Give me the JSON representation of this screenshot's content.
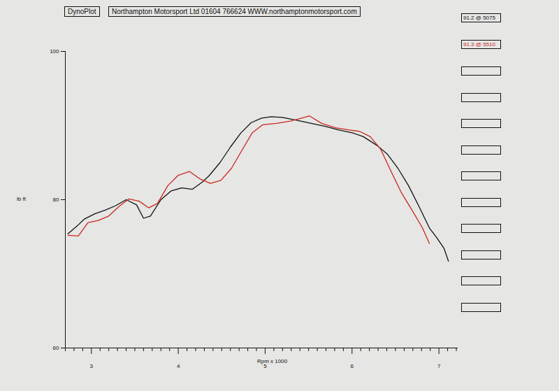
{
  "chart_data": {
    "type": "line",
    "title": "DynoPlot",
    "subtitle": "Northampton Motorsport Ltd 01604 766624 WWW.northamptonmotorsport.com",
    "x_label": "Rpm x 1000",
    "y_label": "lb ft",
    "xlim": [
      2.7,
      7.22
    ],
    "xticks": [
      3,
      4,
      5,
      6,
      7
    ],
    "ylim": [
      60,
      100
    ],
    "yticks": [
      60,
      80,
      100
    ],
    "grid": false,
    "series": [
      {
        "name": "91.2 @ 5075",
        "color": "#111111",
        "x": [
          2.73,
          2.84,
          2.92,
          3.04,
          3.16,
          3.28,
          3.4,
          3.52,
          3.6,
          3.68,
          3.8,
          3.92,
          4.04,
          4.16,
          4.28,
          4.36,
          4.48,
          4.6,
          4.72,
          4.84,
          4.96,
          5.07,
          5.2,
          5.37,
          5.53,
          5.69,
          5.85,
          6.01,
          6.13,
          6.29,
          6.41,
          6.53,
          6.65,
          6.77,
          6.89,
          6.98,
          7.06,
          7.11
        ],
        "values": [
          75.4,
          76.5,
          77.4,
          78.1,
          78.6,
          79.2,
          80.0,
          79.3,
          77.5,
          77.8,
          80.0,
          81.2,
          81.6,
          81.4,
          82.4,
          83.3,
          85.0,
          87.1,
          89.0,
          90.4,
          91.0,
          91.2,
          91.1,
          90.7,
          90.3,
          89.9,
          89.4,
          89.0,
          88.5,
          87.3,
          86.1,
          84.2,
          81.9,
          79.1,
          76.2,
          74.8,
          73.4,
          71.7
        ]
      },
      {
        "name": "91.3 @ 5510",
        "color": "#c8281e",
        "x": [
          2.73,
          2.85,
          2.96,
          3.08,
          3.2,
          3.32,
          3.43,
          3.55,
          3.66,
          3.76,
          3.88,
          4.0,
          4.13,
          4.25,
          4.37,
          4.49,
          4.61,
          4.73,
          4.85,
          4.97,
          5.13,
          5.29,
          5.45,
          5.51,
          5.65,
          5.81,
          5.97,
          6.09,
          6.21,
          6.33,
          6.45,
          6.57,
          6.69,
          6.81,
          6.89
        ],
        "values": [
          75.2,
          75.1,
          76.9,
          77.2,
          77.8,
          79.1,
          80.1,
          79.8,
          78.9,
          79.5,
          81.9,
          83.3,
          83.8,
          82.8,
          82.2,
          82.6,
          84.2,
          86.6,
          89.0,
          90.1,
          90.3,
          90.6,
          91.1,
          91.3,
          90.3,
          89.7,
          89.4,
          89.2,
          88.5,
          86.8,
          83.8,
          80.9,
          78.6,
          76.2,
          74.1
        ]
      }
    ]
  }
}
